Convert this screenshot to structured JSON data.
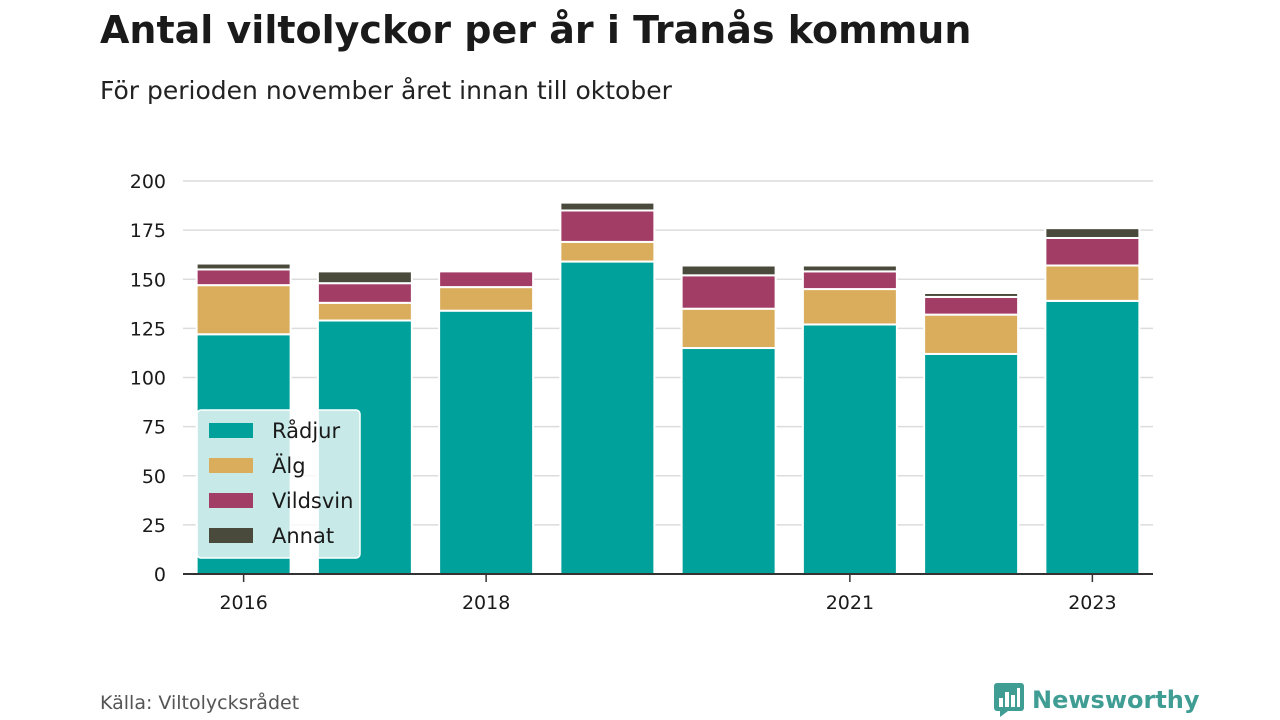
{
  "title": "Antal viltolyckor per år i Tranås kommun",
  "subtitle": "För perioden november året innan till oktober",
  "source": "Källa: Viltolycksrådet",
  "brand": {
    "name": "Newsworthy",
    "icon": "newsworthy-logo-icon",
    "color": "#3f9d93"
  },
  "chart_data": {
    "type": "bar",
    "stacked": true,
    "x": [
      2016,
      2017,
      2018,
      2019,
      2020,
      2021,
      2022,
      2023
    ],
    "x_tick_labels": [
      "2016",
      "2018",
      "2021",
      "2023"
    ],
    "x_tick_values": [
      2016,
      2018,
      2021,
      2023
    ],
    "ylim": [
      0,
      200
    ],
    "y_ticks": [
      0,
      25,
      50,
      75,
      100,
      125,
      150,
      175,
      200
    ],
    "grid": true,
    "legend_position": "bottom-left",
    "series": [
      {
        "name": "Rådjur",
        "color": "#00a19a",
        "values": [
          122,
          129,
          134,
          159,
          115,
          127,
          112,
          139
        ]
      },
      {
        "name": "Älg",
        "color": "#d9ad5b",
        "values": [
          25,
          9,
          12,
          10,
          20,
          18,
          20,
          18
        ]
      },
      {
        "name": "Vildsvin",
        "color": "#a23d66",
        "values": [
          8,
          10,
          8,
          16,
          17,
          9,
          9,
          14
        ]
      },
      {
        "name": "Annat",
        "color": "#4a4a3c",
        "values": [
          3,
          6,
          0,
          4,
          5,
          3,
          2,
          5
        ]
      }
    ]
  }
}
